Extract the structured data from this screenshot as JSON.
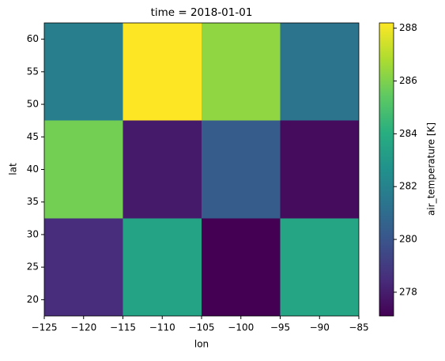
{
  "chart_data": {
    "type": "heatmap",
    "title": "time = 2018-01-01",
    "x_label": "lon",
    "y_label": "lat",
    "colorbar_label": "air_temperature [K]",
    "colormap": "viridis",
    "x": [
      -120,
      -110,
      -100,
      -90
    ],
    "y": [
      25,
      40,
      55
    ],
    "z": [
      [
        278.5,
        283.5,
        277.1,
        283.6
      ],
      [
        285.8,
        277.9,
        280.3,
        277.4
      ],
      [
        281.8,
        288.2,
        286.3,
        281.3
      ]
    ],
    "xlim": [
      -125,
      -85
    ],
    "xticks": [
      {
        "value": -125,
        "label": "−125"
      },
      {
        "value": -120,
        "label": "−120"
      },
      {
        "value": -115,
        "label": "−115"
      },
      {
        "value": -110,
        "label": "−110"
      },
      {
        "value": -105,
        "label": "−105"
      },
      {
        "value": -100,
        "label": "−100"
      },
      {
        "value": -95,
        "label": "−95"
      },
      {
        "value": -90,
        "label": "−90"
      },
      {
        "value": -85,
        "label": "−85"
      }
    ],
    "ylim": [
      17.5,
      62.5
    ],
    "yticks": [
      20,
      25,
      30,
      35,
      40,
      45,
      50,
      55,
      60
    ],
    "clim": [
      277.1,
      288.2
    ],
    "cticks": [
      278,
      280,
      282,
      284,
      286,
      288
    ]
  }
}
